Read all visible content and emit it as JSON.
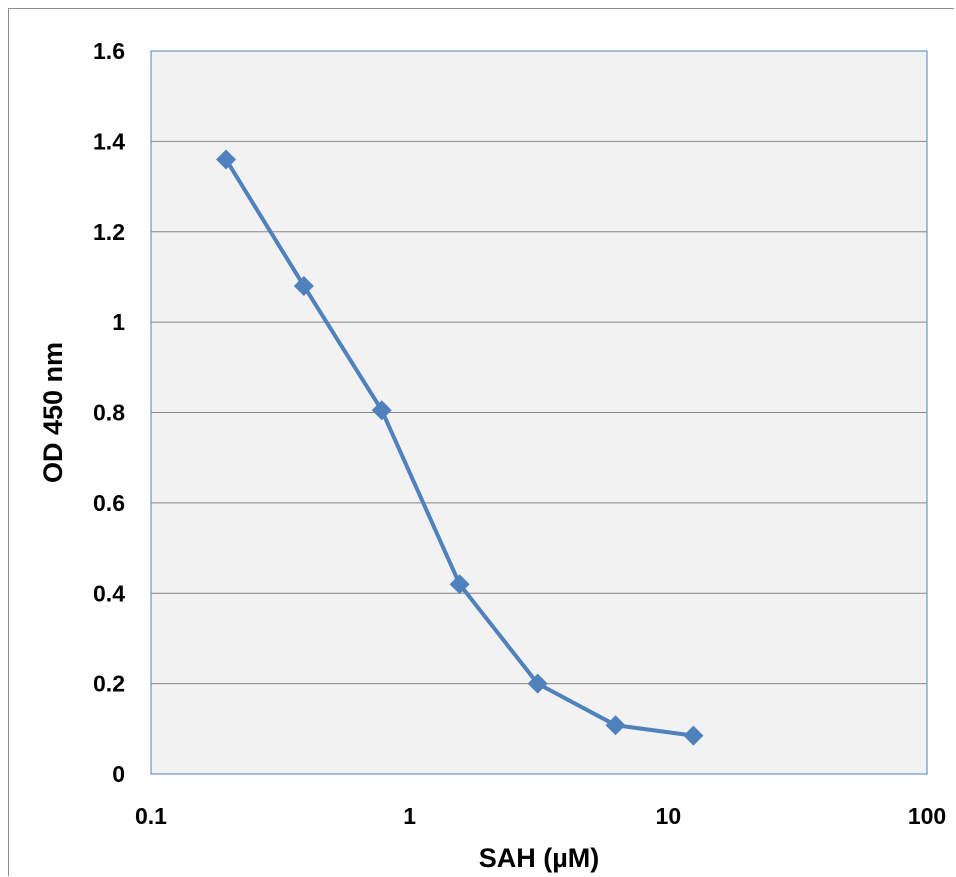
{
  "chart_data": {
    "type": "line",
    "title": "",
    "xlabel": "SAH (µM)",
    "ylabel": "OD 450 nm",
    "x_scale": "log",
    "xlim": [
      0.1,
      100
    ],
    "ylim": [
      0,
      1.6
    ],
    "x_ticks": [
      "0.1",
      "1",
      "10",
      "100"
    ],
    "y_ticks": [
      "0",
      "0.2",
      "0.4",
      "0.6",
      "0.8",
      "1",
      "1.2",
      "1.4",
      "1.6"
    ],
    "grid": "horizontal",
    "legend": "none",
    "series": [
      {
        "x": [
          0.195,
          0.39,
          0.78,
          1.56,
          3.125,
          6.25,
          12.5
        ],
        "y": [
          1.36,
          1.08,
          0.805,
          0.42,
          0.2,
          0.108,
          0.085
        ]
      }
    ],
    "colors": {
      "series": "#4f81bd",
      "plot_bg": "#f2f2f2",
      "grid": "#868686",
      "border": "#4f81bd"
    }
  }
}
